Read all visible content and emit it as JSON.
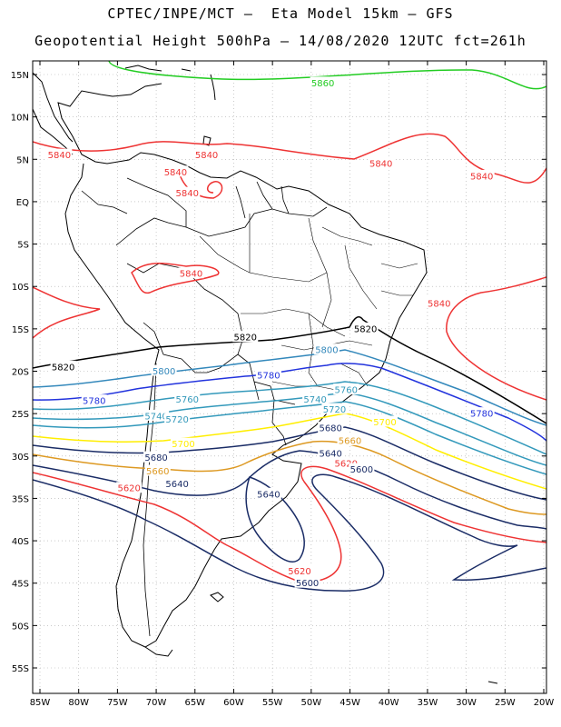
{
  "header": {
    "line1": "CPTEC/INPE/MCT –  Eta Model 15km – GFS",
    "line2": "Geopotential Height 500hPa – 14/08/2020 12UTC fct=261h"
  },
  "axes": {
    "lat_labels": [
      "15N",
      "10N",
      "5N",
      "EQ",
      "5S",
      "10S",
      "15S",
      "20S",
      "25S",
      "30S",
      "35S",
      "40S",
      "45S",
      "50S",
      "55S"
    ],
    "lon_labels": [
      "85W",
      "80W",
      "75W",
      "70W",
      "65W",
      "60W",
      "55W",
      "50W",
      "45W",
      "40W",
      "35W",
      "30W",
      "25W",
      "20W"
    ]
  },
  "contours": [
    {
      "level": 5860,
      "color": "#22cc22"
    },
    {
      "level": 5840,
      "color": "#ee3333"
    },
    {
      "level": 5820,
      "color": "#000000"
    },
    {
      "level": 5800,
      "color": "#3388bb"
    },
    {
      "level": 5780,
      "color": "#2233dd"
    },
    {
      "level": 5760,
      "color": "#3399bb"
    },
    {
      "level": 5740,
      "color": "#3399bb"
    },
    {
      "level": 5720,
      "color": "#3399bb"
    },
    {
      "level": 5700,
      "color": "#ffee00"
    },
    {
      "level": 5680,
      "color": "#1a2c66"
    },
    {
      "level": 5660,
      "color": "#dd9922"
    },
    {
      "level": 5640,
      "color": "#1a2c66"
    },
    {
      "level": 5620,
      "color": "#ee3333"
    },
    {
      "level": 5600,
      "color": "#1a2c66"
    }
  ],
  "labels": [
    {
      "text": "5860",
      "color": "#22cc22",
      "lon": -48.5,
      "lat": 14.0
    },
    {
      "text": "5840",
      "color": "#ee3333",
      "lon": -82.5,
      "lat": 5.5
    },
    {
      "text": "5840",
      "color": "#ee3333",
      "lon": -63.5,
      "lat": 5.5
    },
    {
      "text": "5840",
      "color": "#ee3333",
      "lon": -67.5,
      "lat": 3.5
    },
    {
      "text": "5840",
      "color": "#ee3333",
      "lon": -66.0,
      "lat": 1.0
    },
    {
      "text": "5840",
      "color": "#ee3333",
      "lon": -41.0,
      "lat": 4.5
    },
    {
      "text": "5840",
      "color": "#ee3333",
      "lon": -28.0,
      "lat": 3.0
    },
    {
      "text": "5840",
      "color": "#ee3333",
      "lon": -65.5,
      "lat": -8.5
    },
    {
      "text": "5840",
      "color": "#ee3333",
      "lon": -33.5,
      "lat": -12.0
    },
    {
      "text": "5820",
      "color": "#000000",
      "lon": -82.0,
      "lat": -19.5
    },
    {
      "text": "5820",
      "color": "#000000",
      "lon": -58.5,
      "lat": -16.0
    },
    {
      "text": "5820",
      "color": "#000000",
      "lon": -43.0,
      "lat": -15.0
    },
    {
      "text": "5800",
      "color": "#3388bb",
      "lon": -69.0,
      "lat": -20.0
    },
    {
      "text": "5800",
      "color": "#3388bb",
      "lon": -48.0,
      "lat": -17.5
    },
    {
      "text": "5780",
      "color": "#2233dd",
      "lon": -78.0,
      "lat": -23.5
    },
    {
      "text": "5780",
      "color": "#2233dd",
      "lon": -55.5,
      "lat": -20.5
    },
    {
      "text": "5780",
      "color": "#2233dd",
      "lon": -28.0,
      "lat": -25.0
    },
    {
      "text": "5760",
      "color": "#3399bb",
      "lon": -66.0,
      "lat": -23.3
    },
    {
      "text": "5760",
      "color": "#3399bb",
      "lon": -45.5,
      "lat": -22.2
    },
    {
      "text": "5740",
      "color": "#3399bb",
      "lon": -49.5,
      "lat": -23.3
    },
    {
      "text": "5740",
      "color": "#3399bb",
      "lon": -70.0,
      "lat": -25.3
    },
    {
      "text": "5720",
      "color": "#3399bb",
      "lon": -67.3,
      "lat": -25.7
    },
    {
      "text": "5720",
      "color": "#3399bb",
      "lon": -47.0,
      "lat": -24.5
    },
    {
      "text": "5700",
      "color": "#ffee00",
      "lon": -66.5,
      "lat": -28.6
    },
    {
      "text": "5700",
      "color": "#ffee00",
      "lon": -40.5,
      "lat": -26.0
    },
    {
      "text": "5680",
      "color": "#1a2c66",
      "lon": -70.0,
      "lat": -30.2
    },
    {
      "text": "5680",
      "color": "#1a2c66",
      "lon": -47.5,
      "lat": -26.7
    },
    {
      "text": "5660",
      "color": "#dd9922",
      "lon": -69.8,
      "lat": -31.8
    },
    {
      "text": "5660",
      "color": "#dd9922",
      "lon": -45.0,
      "lat": -28.2
    },
    {
      "text": "5640",
      "color": "#1a2c66",
      "lon": -67.3,
      "lat": -33.3
    },
    {
      "text": "5640",
      "color": "#1a2c66",
      "lon": -47.5,
      "lat": -29.7
    },
    {
      "text": "5640",
      "color": "#1a2c66",
      "lon": -55.5,
      "lat": -34.5
    },
    {
      "text": "5620",
      "color": "#ee3333",
      "lon": -45.5,
      "lat": -30.9
    },
    {
      "text": "5620",
      "color": "#ee3333",
      "lon": -73.5,
      "lat": -33.8
    },
    {
      "text": "5620",
      "color": "#ee3333",
      "lon": -51.5,
      "lat": -43.6
    },
    {
      "text": "5600",
      "color": "#1a2c66",
      "lon": -43.5,
      "lat": -31.6
    },
    {
      "text": "5600",
      "color": "#1a2c66",
      "lon": -50.5,
      "lat": -45.0
    }
  ]
}
